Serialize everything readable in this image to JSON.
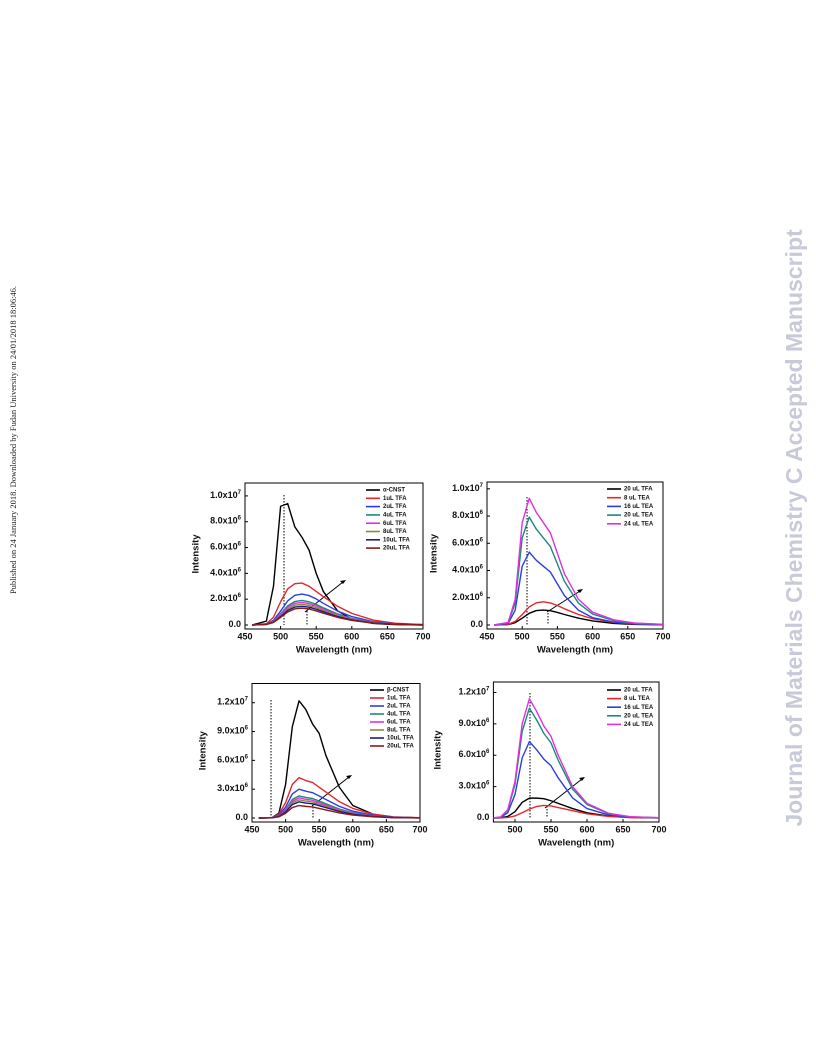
{
  "side_note": "Published on 24 January 2018. Downloaded by Fudan University on 24/01/2018 18:06:46.",
  "journal_banner": "Journal of Materials Chemistry C Accepted Manuscript",
  "chart_data": [
    {
      "type": "line",
      "x_label": "Wavelength (nm)",
      "y_label": "Intensity",
      "x": [
        460,
        480,
        490,
        500,
        510,
        520,
        530,
        540,
        550,
        560,
        580,
        600,
        630,
        660,
        700
      ],
      "xlim": [
        450,
        700
      ],
      "xticks": [
        450,
        500,
        550,
        600,
        650,
        700
      ],
      "ylim": [
        0,
        11000000.0
      ],
      "yticks": [
        {
          "value": 0,
          "label": "0.0"
        },
        {
          "value": 2000000.0,
          "label": "2.0x10",
          "exponent": "6"
        },
        {
          "value": 4000000.0,
          "label": "4.0x10",
          "exponent": "6"
        },
        {
          "value": 6000000.0,
          "label": "6.0x10",
          "exponent": "6"
        },
        {
          "value": 8000000.0,
          "label": "8.0x10",
          "exponent": "6"
        },
        {
          "value": 10000000.0,
          "label": "1.0x10",
          "exponent": "7"
        }
      ],
      "series": [
        {
          "name": "α-CNST",
          "color": "#000000",
          "values": [
            0,
            300000.0,
            3000000.0,
            9200000.0,
            9400000.0,
            7600000.0,
            6800000.0,
            5800000.0,
            4000000.0,
            2600000.0,
            1100000.0,
            450000.0,
            120000.0,
            30000.0,
            0
          ]
        },
        {
          "name": "1uL TFA",
          "color": "#e8262a",
          "values": [
            0,
            100000.0,
            600000.0,
            1800000.0,
            2800000.0,
            3200000.0,
            3250000.0,
            3000000.0,
            2600000.0,
            2200000.0,
            1450000.0,
            900000.0,
            380000.0,
            140000.0,
            30000.0
          ]
        },
        {
          "name": "2uL TFA",
          "color": "#2b3fe0",
          "values": [
            0,
            70000.0,
            360000.0,
            1080000.0,
            1870000.0,
            2300000.0,
            2400000.0,
            2280000.0,
            2020000.0,
            1680000.0,
            1080000.0,
            650000.0,
            260000.0,
            100000.0,
            20000.0
          ]
        },
        {
          "name": "4uL TFA",
          "color": "#1b8a7a",
          "values": [
            0,
            60000.0,
            290000.0,
            860000.0,
            1480000.0,
            1820000.0,
            1900000.0,
            1800000.0,
            1600000.0,
            1330000.0,
            860000.0,
            510000.0,
            210000.0,
            80000.0,
            20000.0
          ]
        },
        {
          "name": "6uL TFA",
          "color": "#e030e0",
          "values": [
            0,
            50000.0,
            260000.0,
            790000.0,
            1370000.0,
            1680000.0,
            1750000.0,
            1660000.0,
            1470000.0,
            1230000.0,
            790000.0,
            470000.0,
            190000.0,
            70000.0,
            20000.0
          ]
        },
        {
          "name": "8uL TFA",
          "color": "#8a8a3a",
          "values": [
            0,
            50000.0,
            240000.0,
            720000.0,
            1250000.0,
            1540000.0,
            1600000.0,
            1520000.0,
            1340000.0,
            1120000.0,
            720000.0,
            430000.0,
            180000.0,
            60000.0,
            20000.0
          ]
        },
        {
          "name": "10uL TFA",
          "color": "#1a1a8a",
          "values": [
            0,
            40000.0,
            220000.0,
            650000.0,
            1130000.0,
            1390000.0,
            1450000.0,
            1380000.0,
            1220000.0,
            1020000.0,
            650000.0,
            390000.0,
            160000.0,
            60000.0,
            10000.0
          ]
        },
        {
          "name": "20uL TFA",
          "color": "#8a1a1a",
          "values": [
            0,
            40000.0,
            200000.0,
            590000.0,
            1010000.0,
            1250000.0,
            1300000.0,
            1240000.0,
            1090000.0,
            910000.0,
            590000.0,
            350000.0,
            140000.0,
            50000.0,
            10000.0
          ]
        }
      ]
    },
    {
      "type": "line",
      "x_label": "Wavelength (nm)",
      "y_label": "Intensity",
      "x": [
        460,
        480,
        490,
        500,
        510,
        520,
        530,
        540,
        550,
        560,
        580,
        600,
        630,
        660,
        700
      ],
      "xlim": [
        450,
        700
      ],
      "xticks": [
        450,
        500,
        550,
        600,
        650,
        700
      ],
      "ylim": [
        0,
        10500000.0
      ],
      "yticks": [
        {
          "value": 0,
          "label": "0.0"
        },
        {
          "value": 2000000.0,
          "label": "2.0x10",
          "exponent": "6"
        },
        {
          "value": 4000000.0,
          "label": "4.0x10",
          "exponent": "6"
        },
        {
          "value": 6000000.0,
          "label": "6.0x10",
          "exponent": "6"
        },
        {
          "value": 8000000.0,
          "label": "8.0x10",
          "exponent": "6"
        },
        {
          "value": 10000000.0,
          "label": "1.0x10",
          "exponent": "7"
        }
      ],
      "series": [
        {
          "name": "20 uL TFA",
          "color": "#000000",
          "values": [
            0,
            30000.0,
            170000.0,
            500000.0,
            860000.0,
            1060000.0,
            1100000.0,
            1050000.0,
            920000.0,
            770000.0,
            500000.0,
            300000.0,
            120000.0,
            40000.0,
            10000.0
          ]
        },
        {
          "name": "8 uL TEA",
          "color": "#e8262a",
          "values": [
            0,
            50000.0,
            260000.0,
            770000.0,
            1330000.0,
            1630000.0,
            1700000.0,
            1620000.0,
            1430000.0,
            1190000.0,
            770000.0,
            460000.0,
            190000.0,
            70000.0,
            20000.0
          ]
        },
        {
          "name": "16 uL TEA",
          "color": "#2b3fe0",
          "values": [
            0,
            110000.0,
            1080000.0,
            4320000.0,
            5350000.0,
            4750000.0,
            4320000.0,
            3890000.0,
            3020000.0,
            2160000.0,
            1080000.0,
            540000.0,
            220000.0,
            80000.0,
            30000.0
          ]
        },
        {
          "name": "20 uL TEA",
          "color": "#1b8a7a",
          "values": [
            0,
            160000.0,
            1600000.0,
            6400000.0,
            7920000.0,
            7040000.0,
            6400000.0,
            5760000.0,
            4480000.0,
            3200000.0,
            1600000.0,
            800000.0,
            320000.0,
            120000.0,
            40000.0
          ]
        },
        {
          "name": "24 uL TEA",
          "color": "#e030e0",
          "values": [
            0,
            190000.0,
            1880000.0,
            7520000.0,
            9300000.0,
            8270000.0,
            7520000.0,
            6770000.0,
            5260000.0,
            3760000.0,
            1880000.0,
            940000.0,
            380000.0,
            140000.0,
            50000.0
          ]
        }
      ]
    },
    {
      "type": "line",
      "x_label": "Wavelength (nm)",
      "y_label": "Intensity",
      "x": [
        460,
        480,
        490,
        500,
        510,
        520,
        530,
        540,
        550,
        560,
        580,
        600,
        630,
        660,
        700
      ],
      "xlim": [
        450,
        700
      ],
      "xticks": [
        450,
        500,
        550,
        600,
        650,
        700
      ],
      "ylim": [
        0,
        14000000.0
      ],
      "yticks": [
        {
          "value": 0,
          "label": "0.0"
        },
        {
          "value": 3000000.0,
          "label": "3.0x10",
          "exponent": "6"
        },
        {
          "value": 6000000.0,
          "label": "6.0x10",
          "exponent": "6"
        },
        {
          "value": 9000000.0,
          "label": "9.0x10",
          "exponent": "6"
        },
        {
          "value": 12000000.0,
          "label": "1.2x10",
          "exponent": "7"
        }
      ],
      "series": [
        {
          "name": "β-CNST",
          "color": "#000000",
          "values": [
            0,
            50000.0,
            500000.0,
            3500000.0,
            9500000.0,
            12200000.0,
            11300000.0,
            9800000.0,
            8800000.0,
            6500000.0,
            3200000.0,
            1300000.0,
            400000.0,
            100000.0,
            20000.0
          ]
        },
        {
          "name": "1uL TFA",
          "color": "#e8262a",
          "values": [
            0,
            50000.0,
            400000.0,
            1600000.0,
            3500000.0,
            4200000.0,
            3900000.0,
            3700000.0,
            3200000.0,
            2700000.0,
            1700000.0,
            1000000.0,
            400000.0,
            120000.0,
            30000.0
          ]
        },
        {
          "name": "2uL TFA",
          "color": "#2b3fe0",
          "values": [
            0,
            40000.0,
            290000.0,
            1140000.0,
            2500000.0,
            3000000.0,
            2790000.0,
            2640000.0,
            2290000.0,
            1930000.0,
            1210000.0,
            710000.0,
            290000.0,
            90000.0,
            20000.0
          ]
        },
        {
          "name": "4uL TFA",
          "color": "#1b8a7a",
          "values": [
            0,
            30000.0,
            220000.0,
            880000.0,
            1920000.0,
            2300000.0,
            2140000.0,
            2030000.0,
            1760000.0,
            1480000.0,
            930000.0,
            550000.0,
            220000.0,
            70000.0,
            20000.0
          ]
        },
        {
          "name": "6uL TFA",
          "color": "#e030e0",
          "values": [
            0,
            30000.0,
            200000.0,
            800000.0,
            1750000.0,
            2100000.0,
            1950000.0,
            1850000.0,
            1600000.0,
            1350000.0,
            850000.0,
            500000.0,
            200000.0,
            60000.0,
            20000.0
          ]
        },
        {
          "name": "8uL TFA",
          "color": "#8a8a3a",
          "values": [
            0,
            20000.0,
            180000.0,
            720000.0,
            1580000.0,
            1890000.0,
            1760000.0,
            1670000.0,
            1440000.0,
            1220000.0,
            770000.0,
            450000.0,
            180000.0,
            50000.0,
            10000.0
          ]
        },
        {
          "name": "10uL TFA",
          "color": "#1a1a8a",
          "values": [
            0,
            20000.0,
            160000.0,
            640000.0,
            1400000.0,
            1680000.0,
            1560000.0,
            1480000.0,
            1280000.0,
            1080000.0,
            680000.0,
            400000.0,
            160000.0,
            50000.0,
            10000.0
          ]
        },
        {
          "name": "20uL TFA",
          "color": "#8a1a1a",
          "values": [
            0,
            20000.0,
            120000.0,
            500000.0,
            1090000.0,
            1300000.0,
            1210000.0,
            1150000.0,
            990000.0,
            840000.0,
            530000.0,
            310000.0,
            120000.0,
            40000.0,
            10000.0
          ]
        }
      ]
    },
    {
      "type": "line",
      "x_label": "Wavelength (nm)",
      "y_label": "Intensity",
      "x": [
        470,
        480,
        490,
        500,
        510,
        520,
        530,
        540,
        550,
        560,
        580,
        600,
        630,
        660,
        700
      ],
      "xlim": [
        470,
        700
      ],
      "xticks": [
        500,
        550,
        600,
        650,
        700
      ],
      "ylim": [
        0,
        13000000.0
      ],
      "yticks": [
        {
          "value": 0,
          "label": "0.0"
        },
        {
          "value": 3000000.0,
          "label": "3.0x10",
          "exponent": "6"
        },
        {
          "value": 6000000.0,
          "label": "6.0x10",
          "exponent": "6"
        },
        {
          "value": 9000000.0,
          "label": "9.0x10",
          "exponent": "6"
        },
        {
          "value": 12000000.0,
          "label": "1.2x10",
          "exponent": "7"
        }
      ],
      "series": [
        {
          "name": "20 uL TFA",
          "color": "#000000",
          "values": [
            0,
            20000.0,
            150000.0,
            600000.0,
            1500000.0,
            1900000.0,
            1900000.0,
            1850000.0,
            1650000.0,
            1400000.0,
            900000.0,
            500000.0,
            180000.0,
            50000.0,
            10000.0
          ]
        },
        {
          "name": "8 uL TEA",
          "color": "#e8262a",
          "values": [
            0,
            10000.0,
            50000.0,
            200000.0,
            500000.0,
            850000.0,
            1100000.0,
            1200000.0,
            1150000.0,
            1000000.0,
            700000.0,
            400000.0,
            150000.0,
            40000.0,
            10000.0
          ]
        },
        {
          "name": "16 uL TEA",
          "color": "#2b3fe0",
          "values": [
            0,
            60000.0,
            510000.0,
            2240000.0,
            5760000.0,
            7300000.0,
            6530000.0,
            5630000.0,
            4990000.0,
            3840000.0,
            1920000.0,
            900000.0,
            290000.0,
            80000.0,
            20000.0
          ]
        },
        {
          "name": "20 uL TEA",
          "color": "#1b8a7a",
          "values": [
            0,
            90000.0,
            740000.0,
            3220000.0,
            8280000.0,
            10500000.0,
            9380000.0,
            8100000.0,
            7180000.0,
            5520000.0,
            2760000.0,
            1290000.0,
            410000.0,
            110000.0,
            30000.0
          ]
        },
        {
          "name": "24 uL TEA",
          "color": "#e030e0",
          "values": [
            0,
            100000.0,
            800000.0,
            3500000.0,
            9000000.0,
            11400000.0,
            10200000.0,
            8800000.0,
            7800000.0,
            6000000.0,
            3000000.0,
            1400000.0,
            450000.0,
            120000.0,
            30000.0
          ]
        }
      ]
    }
  ]
}
